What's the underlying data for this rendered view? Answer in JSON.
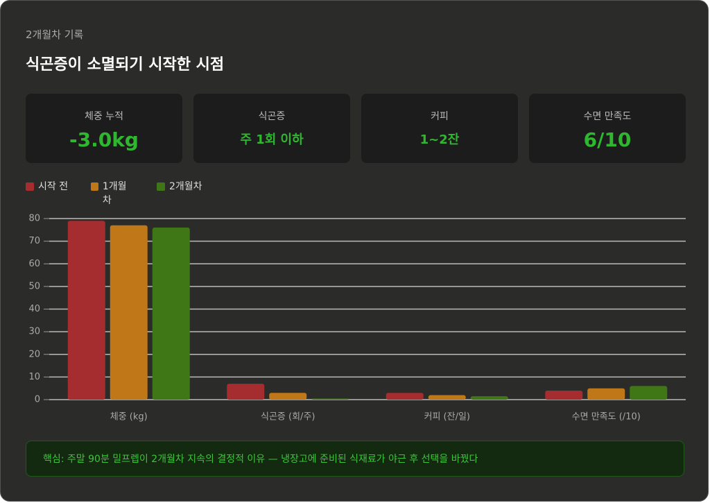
{
  "header": {
    "subtitle": "2개월차 기록",
    "title": "식곤증이 소멸되기 시작한 시점"
  },
  "cards": [
    {
      "label": "체중 누적",
      "value": "-3.0kg"
    },
    {
      "label": "식곤증",
      "value": "주 1회 이하"
    },
    {
      "label": "커피",
      "value": "1~2잔"
    },
    {
      "label": "수면 만족도",
      "value": "6/10"
    }
  ],
  "chart_data": {
    "type": "bar",
    "categories": [
      "체중 (kg)",
      "식곤증 (회/주)",
      "커피 (잔/일)",
      "수면 만족도 (/10)"
    ],
    "series": [
      {
        "name": "시작 전",
        "color": "#a52c2f",
        "values": [
          79,
          7,
          3,
          4
        ]
      },
      {
        "name": "1개월차",
        "color": "#bf7718",
        "values": [
          77,
          3,
          2,
          5
        ]
      },
      {
        "name": "2개월차",
        "color": "#3f7716",
        "values": [
          76,
          0.5,
          1.5,
          6
        ]
      }
    ],
    "ylim": [
      0,
      80
    ],
    "yticks": [
      0,
      10,
      20,
      30,
      40,
      50,
      60,
      70,
      80
    ],
    "grid": true
  },
  "note": "핵심: 주말 90분 밀프렙이 2개월차 지속의 결정적 이유 — 냉장고에 준비된 식재료가 야근 후 선택을 바꿨다"
}
